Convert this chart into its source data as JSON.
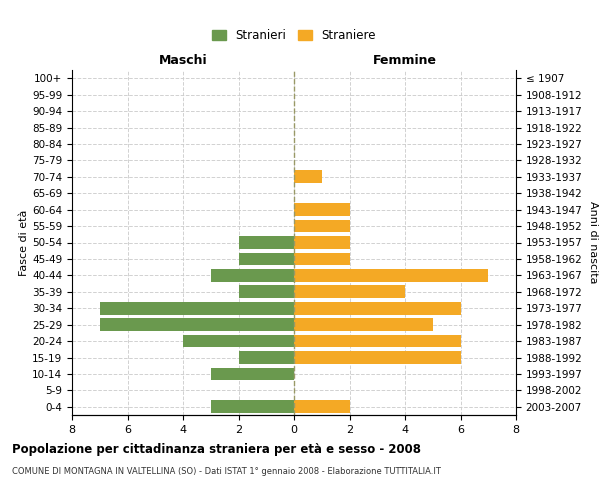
{
  "age_groups": [
    "0-4",
    "5-9",
    "10-14",
    "15-19",
    "20-24",
    "25-29",
    "30-34",
    "35-39",
    "40-44",
    "45-49",
    "50-54",
    "55-59",
    "60-64",
    "65-69",
    "70-74",
    "75-79",
    "80-84",
    "85-89",
    "90-94",
    "95-99",
    "100+"
  ],
  "birth_years": [
    "2003-2007",
    "1998-2002",
    "1993-1997",
    "1988-1992",
    "1983-1987",
    "1978-1982",
    "1973-1977",
    "1968-1972",
    "1963-1967",
    "1958-1962",
    "1953-1957",
    "1948-1952",
    "1943-1947",
    "1938-1942",
    "1933-1937",
    "1928-1932",
    "1923-1927",
    "1918-1922",
    "1913-1917",
    "1908-1912",
    "≤ 1907"
  ],
  "males": [
    3,
    0,
    3,
    2,
    4,
    7,
    7,
    2,
    3,
    2,
    2,
    0,
    0,
    0,
    0,
    0,
    0,
    0,
    0,
    0,
    0
  ],
  "females": [
    2,
    0,
    0,
    6,
    6,
    5,
    6,
    4,
    7,
    2,
    2,
    2,
    2,
    0,
    1,
    0,
    0,
    0,
    0,
    0,
    0
  ],
  "male_color": "#6a994e",
  "female_color": "#f4a925",
  "title": "Popolazione per cittadinanza straniera per età e sesso - 2008",
  "subtitle": "COMUNE DI MONTAGNA IN VALTELLINA (SO) - Dati ISTAT 1° gennaio 2008 - Elaborazione TUTTITALIA.IT",
  "ylabel_left": "Fasce di età",
  "ylabel_right": "Anni di nascita",
  "xlabel_left": "Maschi",
  "xlabel_right": "Femmine",
  "legend_males": "Stranieri",
  "legend_females": "Straniere",
  "xlim": 8,
  "background_color": "#ffffff",
  "grid_color": "#cccccc"
}
